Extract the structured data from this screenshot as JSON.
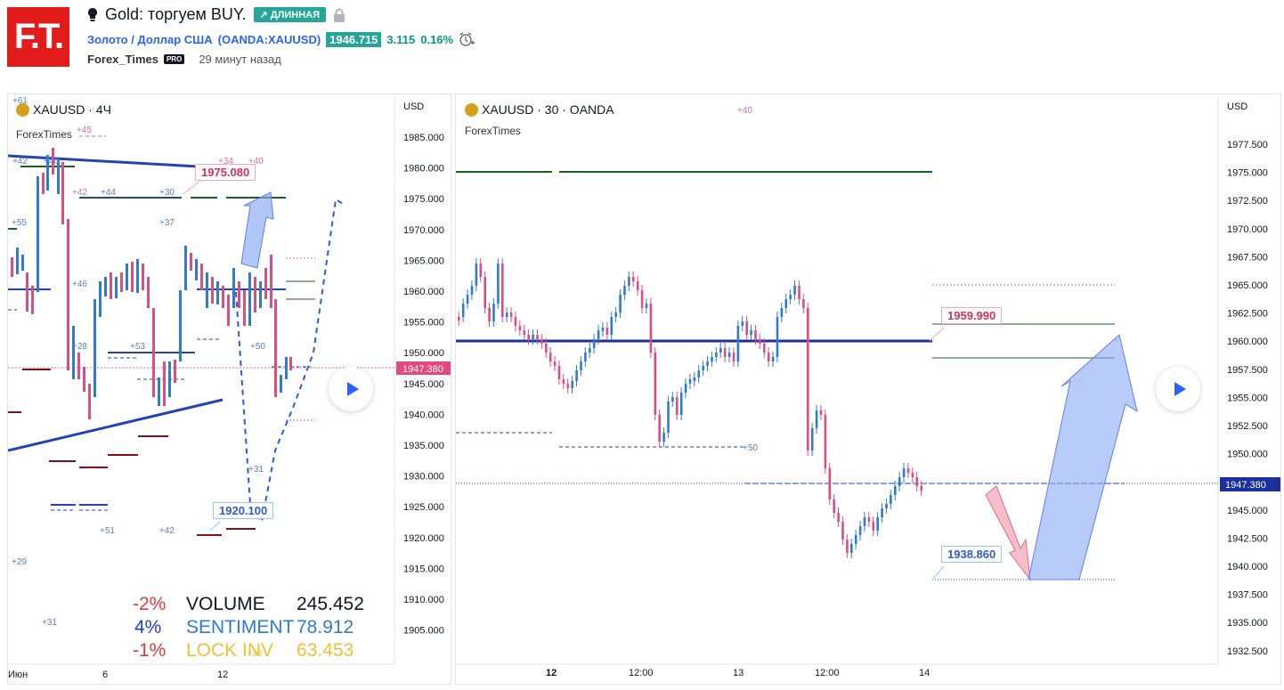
{
  "header": {
    "logo_text": "F.T.",
    "bulb_icon": "lightbulb-icon",
    "title": "Gold: торгуем BUY.",
    "direction_badge": "↗ ДЛИННАЯ",
    "lock_icon": "lock-icon",
    "symbol_name": "Золото / Доллар США",
    "symbol_code": "(OANDA:XAUUSD)",
    "price": "1946.715",
    "change": "3.115",
    "change_pct": "0.16%",
    "alarm_icon": "alarm-clock-icon",
    "author": "Forex_Times",
    "author_badge": "PRO",
    "published": "29 минут назад",
    "colors": {
      "logo": "#e21b1b",
      "positive": "#26a69a",
      "link": "#2962ff"
    }
  },
  "left_chart": {
    "symbol": "XAUUSD · 4Ч",
    "watermark": "ForexTimes",
    "currency": "USD",
    "price_ticks": [
      "1985.000",
      "1980.000",
      "1975.000",
      "1970.000",
      "1965.000",
      "1960.000",
      "1955.000",
      "1950.000",
      "1945.000",
      "1940.000",
      "1935.000",
      "1930.000",
      "1925.000",
      "1920.000",
      "1915.000",
      "1910.000",
      "1905.000"
    ],
    "current_price": "1947.380",
    "time_ticks": [
      "Июн",
      "6",
      "12"
    ],
    "target_label": "1975.080",
    "low_label": "1920.100",
    "marks": [
      "+61",
      "+45",
      "+42",
      "+40",
      "+34",
      "+40",
      "+42",
      "+44",
      "+30",
      "+55",
      "+37",
      "+46",
      "+28",
      "+53",
      "+50",
      "+31",
      "+51",
      "+42",
      "+29",
      "+31",
      "+30"
    ],
    "stats": [
      {
        "pct": "-2%",
        "name": "VOLUME",
        "value": "245.452",
        "pct_color": "#e53935",
        "name_color": "#131722",
        "value_color": "#131722"
      },
      {
        "pct": "4%",
        "name": "SENTIMENT",
        "value": "78.912",
        "pct_color": "#1e40c8",
        "name_color": "#2e7bd6",
        "value_color": "#2e7bd6"
      },
      {
        "pct": "-1%",
        "name": "LOCK INV",
        "value": "63.453",
        "pct_color": "#e53935",
        "name_color": "#f0c030",
        "value_color": "#f0c030"
      }
    ],
    "play_icon": "play-icon"
  },
  "right_chart": {
    "symbol": "XAUUSD · 30 · OANDA",
    "watermark": "ForexTimes",
    "currency": "USD",
    "price_ticks": [
      "1977.500",
      "1975.000",
      "1972.500",
      "1970.000",
      "1967.500",
      "1965.000",
      "1962.500",
      "1960.000",
      "1957.500",
      "1955.000",
      "1952.500",
      "1950.000",
      "1947.500",
      "1945.000",
      "1942.500",
      "1940.000",
      "1937.500",
      "1935.000",
      "1932.500"
    ],
    "current_price": "1947.380",
    "time_ticks": [
      "12",
      "12:00",
      "13",
      "12:00",
      "14"
    ],
    "resistance_label": "1959.990",
    "support_label": "1938.860",
    "marks": [
      "+40",
      "+50"
    ],
    "play_icon": "play-icon"
  }
}
